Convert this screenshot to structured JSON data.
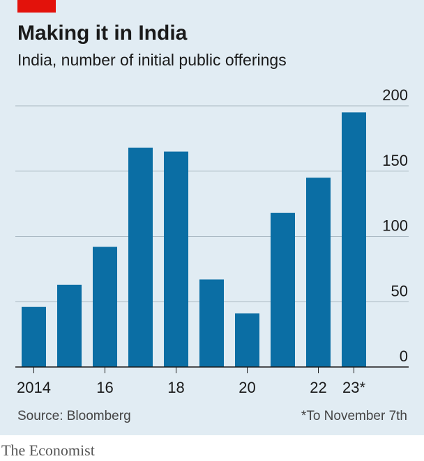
{
  "chart_data": {
    "type": "bar",
    "title": "Making it in India",
    "subtitle": "India, number of initial public offerings",
    "categories": [
      "2014",
      null,
      "16",
      null,
      "18",
      null,
      "20",
      null,
      "22",
      "23*"
    ],
    "values": [
      46,
      63,
      92,
      168,
      165,
      67,
      41,
      118,
      145,
      195
    ],
    "color": "#0b6ea4",
    "ylim": [
      0,
      200
    ],
    "yticks": [
      0,
      50,
      100,
      150,
      200
    ],
    "grid": true,
    "source": "Source: Bloomberg",
    "note": "*To November 7th",
    "brand": "The Economist"
  }
}
